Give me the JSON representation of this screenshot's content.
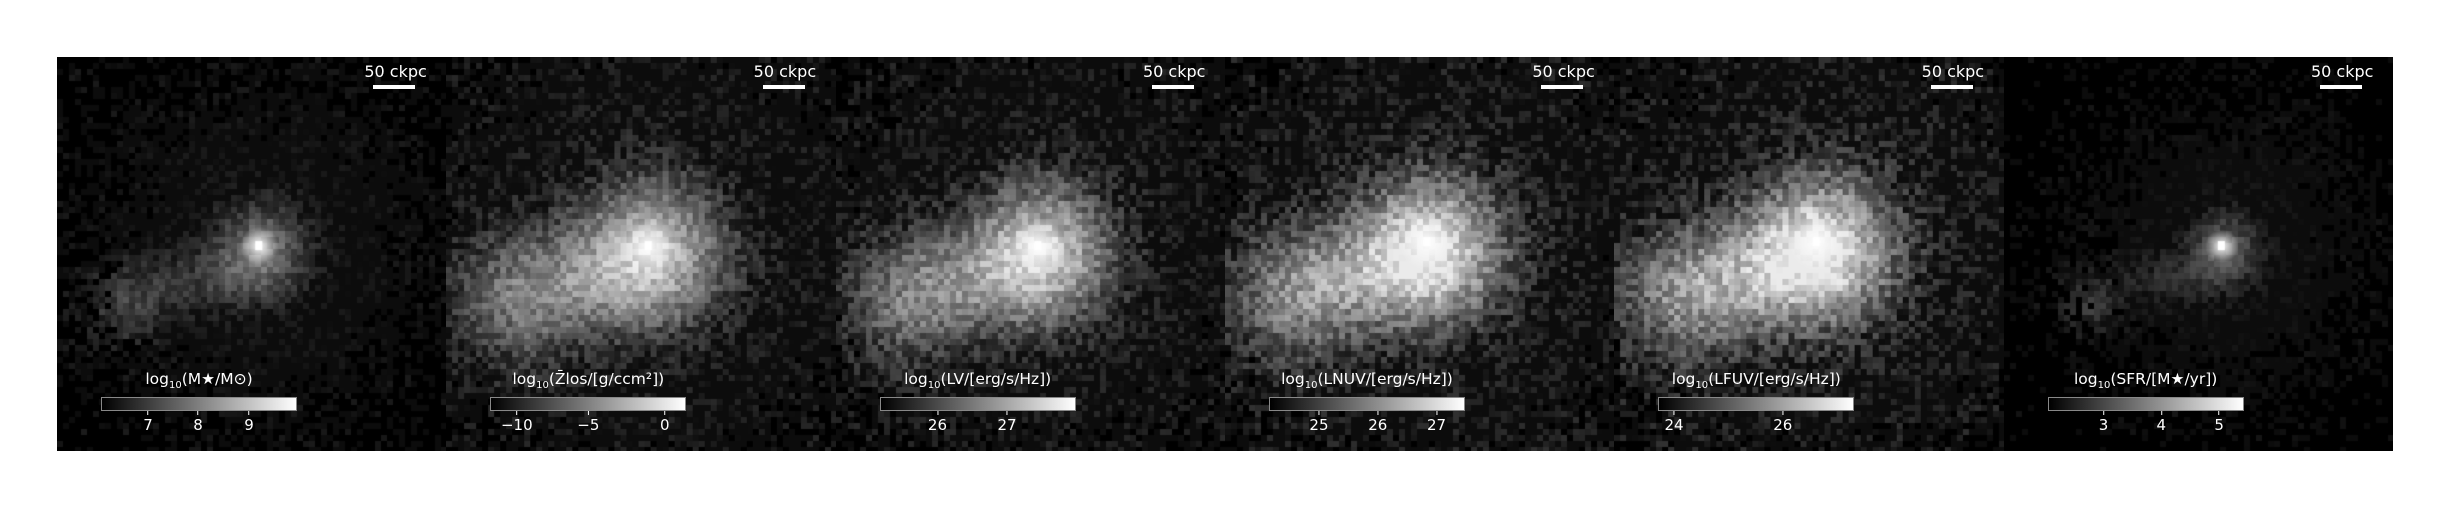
{
  "panels": [
    {
      "scalebar": "50 ckpc",
      "label_pre": "log",
      "label_sub": "10",
      "label_post": "(M★/M⊙)",
      "ticks": [
        {
          "label": "7",
          "frac": 0.24
        },
        {
          "label": "8",
          "frac": 0.495
        },
        {
          "label": "9",
          "frac": 0.755
        }
      ],
      "brightness": 0.55,
      "spread": 0.75,
      "center": [
        0.52,
        0.48
      ]
    },
    {
      "scalebar": "50 ckpc",
      "label_pre": "log",
      "label_sub": "10",
      "label_post": "(Z̄los/[g/ccm²])",
      "ticks": [
        {
          "label": "−10",
          "frac": 0.135
        },
        {
          "label": "−5",
          "frac": 0.5
        },
        {
          "label": "0",
          "frac": 0.89
        }
      ],
      "brightness": 0.8,
      "spread": 1.25,
      "center": [
        0.52,
        0.48
      ]
    },
    {
      "scalebar": "50 ckpc",
      "label_pre": "log",
      "label_sub": "10",
      "label_post": "(LV/[erg/s/Hz])",
      "ticks": [
        {
          "label": "26",
          "frac": 0.295
        },
        {
          "label": "27",
          "frac": 0.65
        }
      ],
      "brightness": 0.85,
      "spread": 1.2,
      "center": [
        0.52,
        0.48
      ]
    },
    {
      "scalebar": "50 ckpc",
      "label_pre": "log",
      "label_sub": "10",
      "label_post": "(LNUV/[erg/s/Hz])",
      "ticks": [
        {
          "label": "25",
          "frac": 0.255
        },
        {
          "label": "26",
          "frac": 0.555
        },
        {
          "label": "27",
          "frac": 0.855
        }
      ],
      "brightness": 0.95,
      "spread": 1.25,
      "center": [
        0.52,
        0.47
      ]
    },
    {
      "scalebar": "50 ckpc",
      "label_pre": "log",
      "label_sub": "10",
      "label_post": "(LFUV/[erg/s/Hz])",
      "ticks": [
        {
          "label": "24",
          "frac": 0.08
        },
        {
          "label": "26",
          "frac": 0.635
        }
      ],
      "brightness": 1.0,
      "spread": 1.25,
      "center": [
        0.52,
        0.47
      ]
    },
    {
      "scalebar": "50 ckpc",
      "label_pre": "log",
      "label_sub": "10",
      "label_post": "(SFR/[M★/yr])",
      "ticks": [
        {
          "label": "3",
          "frac": 0.285
        },
        {
          "label": "4",
          "frac": 0.58
        },
        {
          "label": "5",
          "frac": 0.875
        }
      ],
      "brightness": 0.45,
      "spread": 0.6,
      "center": [
        0.56,
        0.48
      ]
    }
  ]
}
